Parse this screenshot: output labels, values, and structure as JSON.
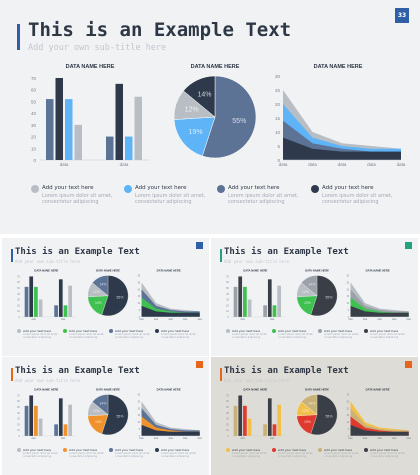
{
  "main": {
    "page_number": "33",
    "title": "This is an Example Text",
    "subtitle": "Add your own sub-title here",
    "legend": [
      {
        "title": "Add your text here",
        "body": "Lorem ipsum dolor sit amet, consectetur adipiscing"
      },
      {
        "title": "Add your text here",
        "body": "Lorem ipsum dolor sit amet, consectetur adipiscing"
      },
      {
        "title": "Add your text here",
        "body": "Lorem ipsum dolor sit amet, consectetur adipiscing"
      },
      {
        "title": "Add your text here",
        "body": "Lorem ipsum dolor sit amet, consectetur adipiscing"
      }
    ]
  },
  "variants": [
    {
      "title": "This is an Example Text",
      "subtitle": "Add your own sub-title here",
      "badge_color": "#2f5fa7",
      "accent": "#2f5fa7",
      "palette": [
        "#5c7396",
        "#2e3a4c",
        "#3ec150",
        "#b9bec5"
      ],
      "bg": "#f0f2f4"
    },
    {
      "title": "This is an Example Text",
      "subtitle": "Add your own sub-title here",
      "badge_color": "#23a37d",
      "accent": "#23a37d",
      "palette": [
        "#9ba1a9",
        "#3a3f47",
        "#3ec150",
        "#b9bec5"
      ],
      "bg": "#f0f2f4"
    },
    {
      "title": "This is an Example Text",
      "subtitle": "Add your own sub-title here",
      "badge_color": "#e6661e",
      "accent": "#e6661e",
      "palette": [
        "#5c7396",
        "#2e3a4c",
        "#f0922b",
        "#b9bec5"
      ],
      "bg": "#f0f2f4"
    },
    {
      "title": "This is an Example Text",
      "subtitle": "Add your own sub-title here",
      "badge_color": "#e6661e",
      "accent": "#e6661e",
      "palette": [
        "#c9b277",
        "#3a3f47",
        "#e03a2f",
        "#f2c14c"
      ],
      "bg": "#dedcd6"
    }
  ],
  "colors": {
    "slide_bg": "#f0f2f4",
    "bar_dark": "#2e3a4c",
    "bar_mid": "#5c7396",
    "bar_light": "#5fb4f7",
    "bar_gray": "#b9bec5",
    "accent_blue": "#2f5fa7"
  },
  "chart_data": [
    {
      "type": "bar",
      "title": "DATA NAME HERE",
      "categories": [
        "data",
        "data"
      ],
      "ylim": [
        0,
        70
      ],
      "yticks": [
        0,
        10,
        20,
        30,
        40,
        50,
        60,
        70
      ],
      "series": [
        {
          "values": [
            52,
            20
          ]
        },
        {
          "values": [
            70,
            65
          ]
        },
        {
          "values": [
            52,
            20
          ]
        },
        {
          "values": [
            30,
            54
          ]
        }
      ]
    },
    {
      "type": "pie",
      "title": "DATA NAME HERE",
      "values": [
        55,
        19,
        12,
        14
      ],
      "labels": [
        "55%",
        "19%",
        "12%",
        "14%"
      ]
    },
    {
      "type": "area",
      "title": "DATA NAME HERE",
      "categories": [
        "data",
        "data",
        "data",
        "data",
        "data"
      ],
      "ylim": [
        0,
        30
      ],
      "yticks": [
        0,
        5,
        10,
        15,
        20,
        25,
        30
      ],
      "series": [
        {
          "values": [
            8,
            4,
            3,
            3,
            3
          ]
        },
        {
          "values": [
            14,
            6,
            4,
            3,
            3
          ]
        },
        {
          "values": [
            20,
            8,
            5,
            4,
            4
          ]
        },
        {
          "values": [
            25,
            10,
            6,
            5,
            4
          ]
        }
      ]
    }
  ]
}
